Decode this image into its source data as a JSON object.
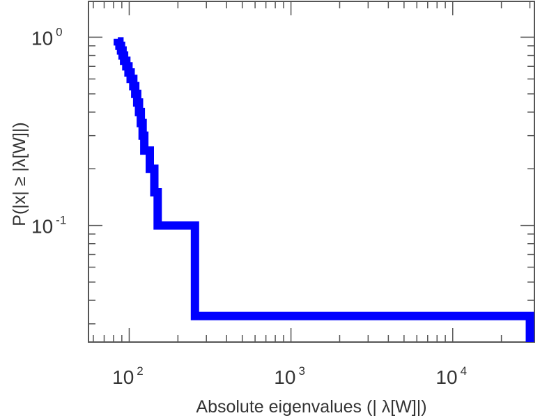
{
  "chart_data": {
    "type": "line",
    "step": true,
    "xscale": "log",
    "yscale": "log",
    "xlim": [
      56,
      32000
    ],
    "ylim": [
      0.024,
      1.55
    ],
    "xlabel": "Absolute eigenvalues (|     λ[W]|)",
    "ylabel": "P(|x|  ≥ |λ[W]|)",
    "x_ticks": [
      {
        "base": "10",
        "exp": "2",
        "value": 100
      },
      {
        "base": "10",
        "exp": "3",
        "value": 1000
      },
      {
        "base": "10",
        "exp": "4",
        "value": 10000
      }
    ],
    "y_ticks": [
      {
        "base": "10",
        "exp": "0",
        "value": 1
      },
      {
        "base": "10",
        "exp": "-1",
        "value": 0.1
      }
    ],
    "series_color": "#0000ff",
    "frame_color": "#555555",
    "series": [
      {
        "points": [
          [
            85,
            0.98
          ],
          [
            85,
            0.95
          ],
          [
            87,
            0.95
          ],
          [
            87,
            0.9
          ],
          [
            89,
            0.9
          ],
          [
            89,
            0.85
          ],
          [
            91,
            0.85
          ],
          [
            91,
            0.8
          ],
          [
            93,
            0.8
          ],
          [
            93,
            0.75
          ],
          [
            96,
            0.75
          ],
          [
            96,
            0.7
          ],
          [
            99,
            0.7
          ],
          [
            99,
            0.65
          ],
          [
            102,
            0.65
          ],
          [
            102,
            0.6
          ],
          [
            106,
            0.6
          ],
          [
            106,
            0.55
          ],
          [
            109,
            0.55
          ],
          [
            109,
            0.5
          ],
          [
            112,
            0.5
          ],
          [
            112,
            0.45
          ],
          [
            115,
            0.45
          ],
          [
            115,
            0.4
          ],
          [
            118,
            0.4
          ],
          [
            118,
            0.35
          ],
          [
            121,
            0.35
          ],
          [
            121,
            0.3
          ],
          [
            124,
            0.3
          ],
          [
            124,
            0.25
          ],
          [
            134,
            0.25
          ],
          [
            134,
            0.2
          ],
          [
            143,
            0.2
          ],
          [
            143,
            0.15
          ],
          [
            150,
            0.15
          ],
          [
            150,
            0.1
          ],
          [
            255,
            0.1
          ],
          [
            255,
            0.033
          ],
          [
            30000,
            0.033
          ],
          [
            30000,
            0.024
          ]
        ]
      }
    ]
  }
}
